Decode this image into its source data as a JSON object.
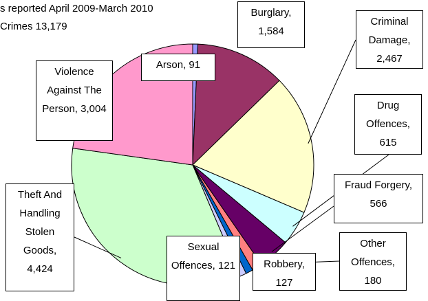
{
  "chart_data": {
    "type": "pie",
    "title": [
      "s reported April 2009-March 2010",
      "Crimes 13,179"
    ],
    "categories": [
      "Arson,",
      "Burglary,",
      "Criminal Damage,",
      "Drug Offences,",
      "Fraud Forgery,",
      "Other Offences,",
      "Robbery,",
      "Sexual Offences,",
      "Theft And Handling Stolen Goods,",
      "Violence Against The Person,"
    ],
    "values": [
      91,
      1584,
      2467,
      615,
      566,
      180,
      127,
      121,
      4424,
      3004
    ],
    "value_labels": [
      "91",
      "1,584",
      "2,467",
      "615",
      "566",
      "180",
      "127",
      "121",
      "4,424",
      "3,004"
    ],
    "colors": [
      "#9999ff",
      "#993366",
      "#ffffcc",
      "#ccffff",
      "#660066",
      "#ff8080",
      "#0066cc",
      "#ccccff",
      "#ccffcc",
      "#ff99cc"
    ]
  }
}
